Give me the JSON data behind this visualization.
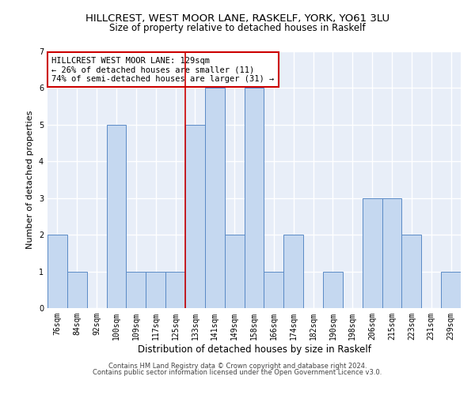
{
  "title1": "HILLCREST, WEST MOOR LANE, RASKELF, YORK, YO61 3LU",
  "title2": "Size of property relative to detached houses in Raskelf",
  "xlabel": "Distribution of detached houses by size in Raskelf",
  "ylabel": "Number of detached properties",
  "footer1": "Contains HM Land Registry data © Crown copyright and database right 2024.",
  "footer2": "Contains public sector information licensed under the Open Government Licence v3.0.",
  "categories": [
    "76sqm",
    "84sqm",
    "92sqm",
    "100sqm",
    "109sqm",
    "117sqm",
    "125sqm",
    "133sqm",
    "141sqm",
    "149sqm",
    "158sqm",
    "166sqm",
    "174sqm",
    "182sqm",
    "190sqm",
    "198sqm",
    "206sqm",
    "215sqm",
    "223sqm",
    "231sqm",
    "239sqm"
  ],
  "values": [
    2,
    1,
    0,
    5,
    1,
    1,
    1,
    5,
    6,
    2,
    6,
    1,
    2,
    0,
    1,
    0,
    3,
    3,
    2,
    0,
    1
  ],
  "highlight_index": 7,
  "bar_color": "#c5d8f0",
  "bar_edge_color": "#5a8ac6",
  "highlight_line_color": "#cc0000",
  "annotation_text": "HILLCREST WEST MOOR LANE: 129sqm\n← 26% of detached houses are smaller (11)\n74% of semi-detached houses are larger (31) →",
  "annotation_box_color": "#ffffff",
  "annotation_box_edge_color": "#cc0000",
  "ylim": [
    0,
    7
  ],
  "yticks": [
    0,
    1,
    2,
    3,
    4,
    5,
    6,
    7
  ],
  "background_color": "#e8eef8",
  "grid_color": "#ffffff",
  "title1_fontsize": 9.5,
  "title2_fontsize": 8.5,
  "xlabel_fontsize": 8.5,
  "ylabel_fontsize": 8,
  "tick_fontsize": 7,
  "annotation_fontsize": 7.5,
  "footer_fontsize": 6.0,
  "footer_color": "#444444"
}
